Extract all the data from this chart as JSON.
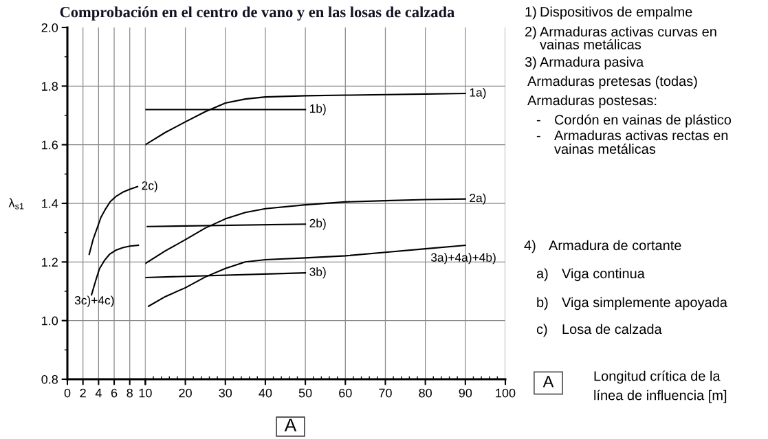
{
  "chart_data": [
    {
      "type": "line",
      "title": "Comprobación en el centro de vano y en las losas de calzada",
      "ylabel": "λ$_{s1}$",
      "xlim": [
        0,
        10
      ],
      "ylim": [
        0.8,
        2.0
      ],
      "xticks": [
        0,
        2,
        4,
        6,
        8,
        {
          "value": 10,
          "label": null
        }
      ],
      "yticks": [
        0.8,
        {
          "value": 1.0,
          "label": "1.0"
        },
        1.2,
        1.4,
        1.6,
        1.8,
        {
          "value": 2.0,
          "label": "2.0"
        }
      ],
      "grid": true,
      "legend": false,
      "line_style": "solid",
      "series": [
        {
          "name": "2c)",
          "color": "#000000",
          "x": [
            2.8,
            3.3,
            3.8,
            4.3,
            4.9,
            5.5,
            6.2,
            7.1,
            8.0,
            9.0
          ],
          "values": [
            1.226,
            1.277,
            1.314,
            1.352,
            1.381,
            1.406,
            1.423,
            1.438,
            1.448,
            1.457
          ]
        },
        {
          "name": "3c)+4c)",
          "color": "#000000",
          "x": [
            3.1,
            3.65,
            4.1,
            4.75,
            5.4,
            6.2,
            7.1,
            8.0,
            9.1
          ],
          "values": [
            1.088,
            1.138,
            1.176,
            1.205,
            1.226,
            1.24,
            1.249,
            1.254,
            1.257
          ]
        }
      ]
    },
    {
      "type": "line",
      "xlabel": "A",
      "xlim": [
        10,
        100
      ],
      "ylim": [
        0.8,
        2.0
      ],
      "xticks": [
        10,
        20,
        30,
        40,
        50,
        60,
        70,
        80,
        90,
        100
      ],
      "yticks": [
        0.8,
        1.0,
        1.2,
        1.4,
        1.6,
        1.8,
        2.0
      ],
      "tick_labels": "x",
      "grid": true,
      "legend": false,
      "line_style": "solid",
      "series": [
        {
          "name": "1a)",
          "color": "#000000",
          "x": [
            10,
            15,
            20,
            25,
            30,
            35,
            40,
            50,
            60,
            70,
            80,
            90
          ],
          "values": [
            1.6,
            1.642,
            1.678,
            1.713,
            1.742,
            1.756,
            1.763,
            1.767,
            1.769,
            1.771,
            1.773,
            1.775
          ]
        },
        {
          "name": "1b)",
          "color": "#000000",
          "x": [
            10,
            50
          ],
          "values": [
            1.72,
            1.72
          ]
        },
        {
          "name": "2a)",
          "color": "#000000",
          "x": [
            10,
            15,
            20,
            25,
            30,
            35,
            40,
            50,
            60,
            70,
            80,
            90
          ],
          "values": [
            1.195,
            1.238,
            1.276,
            1.316,
            1.347,
            1.369,
            1.382,
            1.395,
            1.405,
            1.409,
            1.413,
            1.415
          ]
        },
        {
          "name": "2b)",
          "color": "#000000",
          "x": [
            10.5,
            50
          ],
          "values": [
            1.321,
            1.329
          ]
        },
        {
          "name": "3a)+4a)+4b)",
          "color": "#000000",
          "x": [
            10.8,
            15,
            20,
            25,
            30,
            35,
            40,
            50,
            60,
            70,
            80,
            90
          ],
          "values": [
            1.049,
            1.082,
            1.112,
            1.149,
            1.178,
            1.2,
            1.208,
            1.214,
            1.221,
            1.233,
            1.245,
            1.257
          ]
        },
        {
          "name": "3b)",
          "color": "#000000",
          "x": [
            10,
            50
          ],
          "values": [
            1.147,
            1.163
          ]
        }
      ],
      "annotations": [
        "1) Dispositivos de empalme",
        "2) Armaduras activas curvas en\nvainas metálicas",
        "3) Armadura pasiva",
        "Armaduras pretesas (todas)",
        "Armaduras postesas:",
        "- Cordón en vainas de plástico",
        "- Armaduras activas rectas en\nvainas metálicas",
        "4) Armadura de cortante",
        "a) Viga continua",
        "b) Viga simplemente apoyada",
        "c) Losa de calzada",
        "A",
        "Longitud crítica de la\nlínea de influencia [m]"
      ]
    }
  ]
}
